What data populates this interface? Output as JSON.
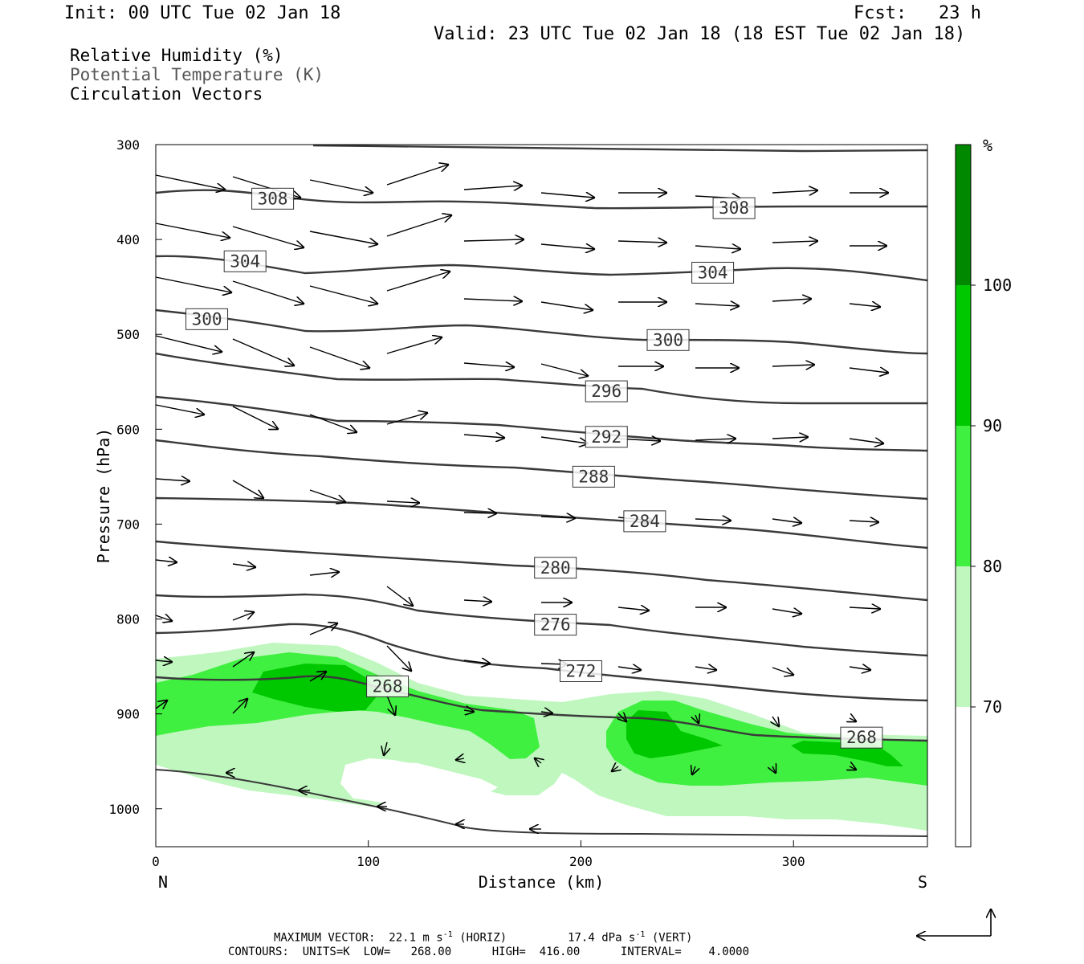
{
  "header": {
    "init": "Init: 00 UTC Tue 02 Jan 18",
    "fcst": "Fcst:   23 h",
    "valid": "Valid: 23 UTC Tue 02 Jan 18 (18 EST Tue 02 Jan 18)"
  },
  "legend": {
    "rh": "Relative Humidity (%)",
    "theta": "Potential Temperature (K)",
    "vec": "Circulation Vectors"
  },
  "colors": {
    "rh70": "#bff7bf",
    "rh80": "#40f040",
    "rh90": "#00c800",
    "rh100": "#008800",
    "contour": "#3a3a3a",
    "vector": "#000000"
  },
  "footer": {
    "max_vector": "MAXIMUM VECTOR:  22.1 m s",
    "horiz": "-1",
    "horiz_tail": " (HORIZ)",
    "vert_val": "17.4 dPa s",
    "vert_exp": "-1",
    "vert_tail": " (VERT)",
    "contours": "CONTOURS:  UNITS=K  LOW=   268.00      HIGH=  416.00      INTERVAL=    4.0000"
  },
  "chart_data": {
    "type": "cross-section",
    "xlabel": "Distance (km)",
    "ylabel": "Pressure (hPa)",
    "xlim": [
      0,
      363
    ],
    "ylim": [
      1040,
      300
    ],
    "x_ticks": [
      "0",
      "100",
      "200",
      "300"
    ],
    "y_ticks": [
      "300",
      "400",
      "500",
      "600",
      "700",
      "800",
      "900",
      "1000"
    ],
    "endpoints": {
      "left": "N",
      "right": "S"
    },
    "colorbar": {
      "unit": "%",
      "levels": [
        "70",
        "80",
        "90",
        "100"
      ]
    },
    "contour_labels": [
      {
        "label": "308",
        "x": 55,
        "p": 357
      },
      {
        "label": "308",
        "x": 272,
        "p": 367
      },
      {
        "label": "304",
        "x": 42,
        "p": 423
      },
      {
        "label": "304",
        "x": 262,
        "p": 435
      },
      {
        "label": "300",
        "x": 24,
        "p": 484
      },
      {
        "label": "300",
        "x": 241,
        "p": 506
      },
      {
        "label": "296",
        "x": 212,
        "p": 560
      },
      {
        "label": "292",
        "x": 212,
        "p": 608
      },
      {
        "label": "288",
        "x": 206,
        "p": 650
      },
      {
        "label": "284",
        "x": 230,
        "p": 697
      },
      {
        "label": "280",
        "x": 188,
        "p": 746
      },
      {
        "label": "276",
        "x": 188,
        "p": 806
      },
      {
        "label": "272",
        "x": 200,
        "p": 855
      },
      {
        "label": "268",
        "x": 109,
        "p": 871
      },
      {
        "label": "268",
        "x": 332,
        "p": 925
      }
    ],
    "theta_contours_K": [
      268,
      272,
      276,
      280,
      284,
      288,
      292,
      296,
      300,
      304,
      308,
      312
    ]
  }
}
